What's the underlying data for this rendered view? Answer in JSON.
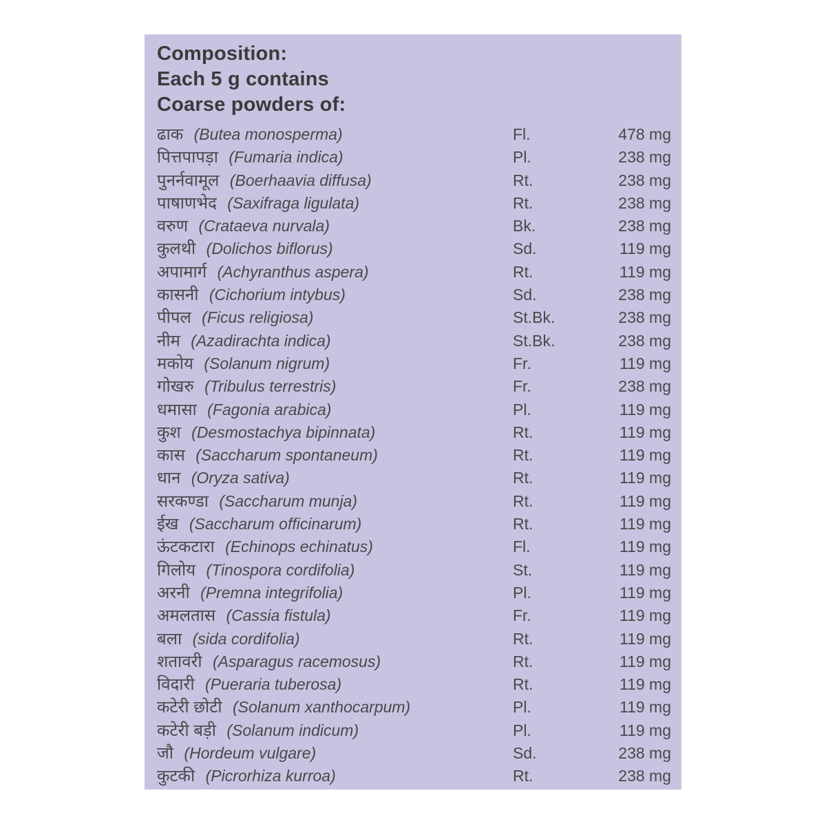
{
  "page": {
    "background_color": "#ffffff"
  },
  "panel": {
    "background_color": "#c7c4e1",
    "header_text_color": "#3a3a3c",
    "body_text_color": "#48484a",
    "header": {
      "line1": "Composition:",
      "line2": "Each 5 g contains",
      "line3": "Coarse powders of:"
    },
    "composition": {
      "rows": [
        {
          "name_hindi": "ढाक",
          "name_latin": "(Butea monosperma)",
          "part": "Fl.",
          "amount": "478 mg"
        },
        {
          "name_hindi": "पित्तपापड़ा",
          "name_latin": "(Fumaria indica)",
          "part": "Pl.",
          "amount": "238 mg"
        },
        {
          "name_hindi": "पुनर्नवामूल",
          "name_latin": "(Boerhaavia diffusa)",
          "part": "Rt.",
          "amount": "238 mg"
        },
        {
          "name_hindi": "पाषाणभेद",
          "name_latin": "(Saxifraga ligulata)",
          "part": "Rt.",
          "amount": "238 mg"
        },
        {
          "name_hindi": "वरुण",
          "name_latin": "(Crataeva nurvala)",
          "part": "Bk.",
          "amount": "238 mg"
        },
        {
          "name_hindi": "कुलथी",
          "name_latin": "(Dolichos biflorus)",
          "part": "Sd.",
          "amount": "119 mg"
        },
        {
          "name_hindi": "अपामार्ग",
          "name_latin": "(Achyranthus aspera)",
          "part": "Rt.",
          "amount": "119 mg"
        },
        {
          "name_hindi": "कासनी",
          "name_latin": "(Cichorium intybus)",
          "part": "Sd.",
          "amount": "238 mg"
        },
        {
          "name_hindi": "पीपल",
          "name_latin": "(Ficus religiosa)",
          "part": "St.Bk.",
          "amount": "238 mg"
        },
        {
          "name_hindi": "नीम",
          "name_latin": "(Azadirachta indica)",
          "part": "St.Bk.",
          "amount": "238 mg"
        },
        {
          "name_hindi": "मकोय",
          "name_latin": "(Solanum nigrum)",
          "part": "Fr.",
          "amount": "119 mg"
        },
        {
          "name_hindi": "गोखरु",
          "name_latin": "(Tribulus terrestris)",
          "part": "Fr.",
          "amount": "238 mg"
        },
        {
          "name_hindi": "धमासा",
          "name_latin": "(Fagonia arabica)",
          "part": "Pl.",
          "amount": "119 mg"
        },
        {
          "name_hindi": "कुश",
          "name_latin": "(Desmostachya bipinnata)",
          "part": "Rt.",
          "amount": "119 mg"
        },
        {
          "name_hindi": "कास",
          "name_latin": "(Saccharum spontaneum)",
          "part": "Rt.",
          "amount": "119 mg"
        },
        {
          "name_hindi": "धान",
          "name_latin": "(Oryza sativa)",
          "part": "Rt.",
          "amount": "119 mg"
        },
        {
          "name_hindi": "सरकण्डा",
          "name_latin": "(Saccharum munja)",
          "part": "Rt.",
          "amount": "119 mg"
        },
        {
          "name_hindi": "ईख",
          "name_latin": "(Saccharum officinarum)",
          "part": "Rt.",
          "amount": "119 mg"
        },
        {
          "name_hindi": "ऊंटकटारा",
          "name_latin": "(Echinops echinatus)",
          "part": "Fl.",
          "amount": "119 mg"
        },
        {
          "name_hindi": "गिलोय",
          "name_latin": "(Tinospora cordifolia)",
          "part": "St.",
          "amount": "119 mg"
        },
        {
          "name_hindi": "अरनी",
          "name_latin": "(Premna integrifolia)",
          "part": "Pl.",
          "amount": "119 mg"
        },
        {
          "name_hindi": "अमलतास",
          "name_latin": "(Cassia fistula)",
          "part": "Fr.",
          "amount": "119 mg"
        },
        {
          "name_hindi": "बला",
          "name_latin": "(sida cordifolia)",
          "part": "Rt.",
          "amount": "119 mg"
        },
        {
          "name_hindi": "शतावरी",
          "name_latin": "(Asparagus racemosus)",
          "part": "Rt.",
          "amount": "119 mg"
        },
        {
          "name_hindi": "विदारी",
          "name_latin": "(Pueraria tuberosa)",
          "part": "Rt.",
          "amount": "119 mg"
        },
        {
          "name_hindi": "कटेरी छोटी",
          "name_latin": "(Solanum xanthocarpum)",
          "part": "Pl.",
          "amount": "119 mg"
        },
        {
          "name_hindi": "कटेरी बड़ी",
          "name_latin": "(Solanum indicum)",
          "part": "Pl.",
          "amount": "119 mg"
        },
        {
          "name_hindi": "जौ",
          "name_latin": "(Hordeum vulgare)",
          "part": "Sd.",
          "amount": "238 mg"
        },
        {
          "name_hindi": "कुटकी",
          "name_latin": "(Picrorhiza kurroa)",
          "part": "Rt.",
          "amount": "238 mg"
        }
      ]
    }
  }
}
